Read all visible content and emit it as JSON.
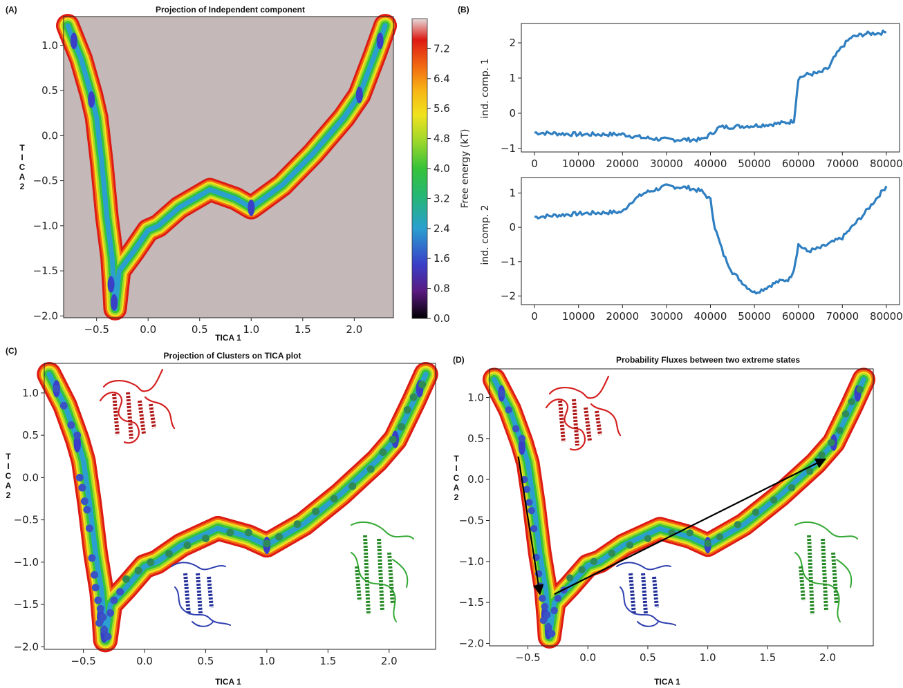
{
  "panel_labels": {
    "A": "(A)",
    "B": "(B)",
    "C": "(C)",
    "D": "(D)"
  },
  "colors": {
    "background_fill": "#c4b8b8",
    "series_line": "#2f7fc1",
    "cluster_blue": "#3b52c4",
    "cluster_green": "#2e8b57",
    "protein_red": "#d42020",
    "protein_blue": "#2f3fb0",
    "protein_green": "#32a832",
    "arrow": "#000000",
    "colormap": [
      "#000000",
      "#5a1a80",
      "#3a3fc8",
      "#2a9fd0",
      "#25b57a",
      "#36c23a",
      "#a6d92a",
      "#f0e21e",
      "#f7b515",
      "#f26b12",
      "#dd1a14",
      "#e6dcdc"
    ]
  },
  "icons": [
    "red-protein-structure-icon",
    "blue-protein-structure-icon",
    "green-protein-structure-icon"
  ],
  "chart_data": [
    {
      "panel": "A",
      "type": "heatmap",
      "title": "Projection of Independent component",
      "xlabel": "TICA 1",
      "ylabel": "TICA 2",
      "xlim": [
        -0.82,
        2.38
      ],
      "ylim": [
        -2.02,
        1.32
      ],
      "xticks": [
        "-0.5",
        "0.0",
        "0.5",
        "1.0",
        "1.5",
        "2.0"
      ],
      "xtick_values": [
        -0.5,
        0.0,
        0.5,
        1.0,
        1.5,
        2.0
      ],
      "yticks": [
        "1.0",
        "0.5",
        "0.0",
        "-0.5",
        "-1.0",
        "-1.5",
        "-2.0"
      ],
      "ytick_values": [
        1.0,
        0.5,
        0.0,
        -0.5,
        -1.0,
        -1.5,
        -2.0
      ],
      "colorbar": {
        "label": "Free energy (kT)",
        "ticks": [
          "7.2",
          "6.4",
          "5.6",
          "4.8",
          "4.0",
          "3.2",
          "2.4",
          "1.6",
          "0.8",
          "0.0"
        ],
        "tick_values": [
          7.2,
          6.4,
          5.6,
          4.8,
          4.0,
          3.2,
          2.4,
          1.6,
          0.8,
          0.0
        ],
        "range": [
          0.0,
          8.0
        ]
      },
      "path": [
        [
          -0.78,
          1.22
        ],
        [
          -0.65,
          0.85
        ],
        [
          -0.55,
          0.45
        ],
        [
          -0.5,
          0.2
        ],
        [
          -0.45,
          -0.3
        ],
        [
          -0.4,
          -0.9
        ],
        [
          -0.35,
          -1.35
        ],
        [
          -0.33,
          -1.7
        ],
        [
          -0.32,
          -1.92
        ],
        [
          -0.28,
          -1.5
        ],
        [
          -0.15,
          -1.3
        ],
        [
          0.0,
          -1.05
        ],
        [
          0.1,
          -1.0
        ],
        [
          0.3,
          -0.8
        ],
        [
          0.6,
          -0.6
        ],
        [
          0.85,
          -0.7
        ],
        [
          1.0,
          -0.8
        ],
        [
          1.3,
          -0.55
        ],
        [
          1.6,
          -0.2
        ],
        [
          1.9,
          0.2
        ],
        [
          2.05,
          0.45
        ],
        [
          2.2,
          0.9
        ],
        [
          2.3,
          1.22
        ]
      ]
    },
    {
      "panel": "B1",
      "type": "line",
      "ylabel": "ind. comp. 1",
      "xlim": [
        -3000,
        83000
      ],
      "ylim": [
        -1.1,
        2.55
      ],
      "xticks": [
        "0",
        "10000",
        "20000",
        "30000",
        "40000",
        "50000",
        "60000",
        "70000",
        "80000"
      ],
      "xtick_values": [
        0,
        10000,
        20000,
        30000,
        40000,
        50000,
        60000,
        70000,
        80000
      ],
      "yticks": [
        "2",
        "1",
        "0",
        "-1"
      ],
      "ytick_values": [
        2,
        1,
        0,
        -1
      ],
      "x": [
        0,
        10000,
        20000,
        25000,
        30000,
        35000,
        38000,
        40000,
        42000,
        50000,
        55000,
        58000,
        59000,
        60000,
        62000,
        65000,
        67000,
        68000,
        70000,
        72000,
        75000,
        80000
      ],
      "y": [
        -0.55,
        -0.6,
        -0.6,
        -0.7,
        -0.75,
        -0.75,
        -0.75,
        -0.6,
        -0.4,
        -0.35,
        -0.3,
        -0.25,
        -0.2,
        1.0,
        1.1,
        1.15,
        1.3,
        1.55,
        1.9,
        2.15,
        2.25,
        2.3
      ]
    },
    {
      "panel": "B2",
      "type": "line",
      "ylabel": "ind. comp. 2",
      "xlim": [
        -3000,
        83000
      ],
      "ylim": [
        -2.25,
        1.45
      ],
      "xticks": [
        "0",
        "10000",
        "20000",
        "30000",
        "40000",
        "50000",
        "60000",
        "70000",
        "80000"
      ],
      "xtick_values": [
        0,
        10000,
        20000,
        30000,
        40000,
        50000,
        60000,
        70000,
        80000
      ],
      "yticks": [
        "1",
        "0",
        "-1",
        "-2"
      ],
      "ytick_values": [
        1,
        0,
        -1,
        -2
      ],
      "x": [
        0,
        10000,
        20000,
        22000,
        25000,
        30000,
        35000,
        38000,
        40000,
        41000,
        43000,
        45000,
        48000,
        50000,
        52000,
        55000,
        58000,
        59000,
        60000,
        62000,
        65000,
        70000,
        75000,
        80000
      ],
      "y": [
        0.3,
        0.4,
        0.45,
        0.75,
        1.0,
        1.2,
        1.15,
        1.05,
        0.8,
        0.0,
        -0.8,
        -1.3,
        -1.7,
        -1.9,
        -1.8,
        -1.6,
        -1.5,
        -1.2,
        -0.5,
        -0.7,
        -0.6,
        -0.3,
        0.4,
        1.2
      ]
    },
    {
      "panel": "C",
      "type": "scatter",
      "title": "Projection of Clusters on TICA plot",
      "xlabel": "TICA 1",
      "ylabel": "TICA 2",
      "xlim": [
        -0.82,
        2.38
      ],
      "ylim": [
        -2.03,
        1.35
      ],
      "xticks": [
        "-0.5",
        "0.0",
        "0.5",
        "1.0",
        "1.5",
        "2.0"
      ],
      "xtick_values": [
        -0.5,
        0.0,
        0.5,
        1.0,
        1.5,
        2.0
      ],
      "yticks": [
        "1.0",
        "0.5",
        "0.0",
        "-0.5",
        "-1.0",
        "-1.5",
        "-2.0"
      ],
      "ytick_values": [
        1.0,
        0.5,
        0.0,
        -0.5,
        -1.0,
        -1.5,
        -2.0
      ],
      "blue_points": [
        [
          -0.72,
          1.05
        ],
        [
          -0.66,
          0.85
        ],
        [
          -0.6,
          0.62
        ],
        [
          -0.55,
          0.5
        ],
        [
          -0.53,
          0.0
        ],
        [
          -0.51,
          -0.12
        ],
        [
          -0.49,
          -0.28
        ],
        [
          -0.47,
          -0.38
        ],
        [
          -0.45,
          -0.6
        ],
        [
          -0.43,
          -0.95
        ],
        [
          -0.41,
          -1.15
        ],
        [
          -0.4,
          -1.3
        ],
        [
          -0.38,
          -1.45
        ],
        [
          -0.36,
          -1.55
        ],
        [
          -0.34,
          -1.65
        ],
        [
          -0.37,
          -1.72
        ],
        [
          -0.33,
          -1.8
        ],
        [
          -0.3,
          -1.88
        ],
        [
          -0.28,
          -1.6
        ],
        [
          -0.25,
          -1.45
        ],
        [
          -0.2,
          -1.35
        ]
      ],
      "green_points": [
        [
          -0.15,
          -1.2
        ],
        [
          -0.05,
          -1.1
        ],
        [
          0.05,
          -1.0
        ],
        [
          0.2,
          -0.9
        ],
        [
          0.35,
          -0.8
        ],
        [
          0.5,
          -0.72
        ],
        [
          0.7,
          -0.65
        ],
        [
          0.85,
          -0.65
        ],
        [
          1.0,
          -0.78
        ],
        [
          1.1,
          -0.7
        ],
        [
          1.25,
          -0.55
        ],
        [
          1.4,
          -0.4
        ],
        [
          1.55,
          -0.25
        ],
        [
          1.7,
          -0.1
        ],
        [
          1.85,
          0.1
        ],
        [
          1.95,
          0.3
        ],
        [
          2.03,
          0.45
        ],
        [
          2.1,
          0.6
        ],
        [
          2.15,
          0.8
        ],
        [
          2.2,
          0.95
        ],
        [
          2.27,
          1.1
        ]
      ]
    },
    {
      "panel": "D",
      "type": "scatter",
      "title": "Probability Fluxes between two extreme states",
      "xlabel": "TICA 1",
      "ylabel": "TICA 2",
      "xlim": [
        -0.82,
        2.38
      ],
      "ylim": [
        -2.03,
        1.35
      ],
      "xticks": [
        "-0.5",
        "0.0",
        "0.5",
        "1.0",
        "1.5",
        "2.0"
      ],
      "xtick_values": [
        -0.5,
        0.0,
        0.5,
        1.0,
        1.5,
        2.0
      ],
      "yticks": [
        "1.0",
        "0.5",
        "0.0",
        "-0.5",
        "-1.0",
        "-1.5",
        "-2.0"
      ],
      "ytick_values": [
        1.0,
        0.5,
        0.0,
        -0.5,
        -1.0,
        -1.5,
        -2.0
      ],
      "arrows": [
        [
          [
            -0.58,
            0.28
          ],
          [
            -0.4,
            -1.4
          ]
        ],
        [
          [
            -0.28,
            -1.4
          ],
          [
            1.98,
            0.25
          ]
        ]
      ]
    }
  ]
}
